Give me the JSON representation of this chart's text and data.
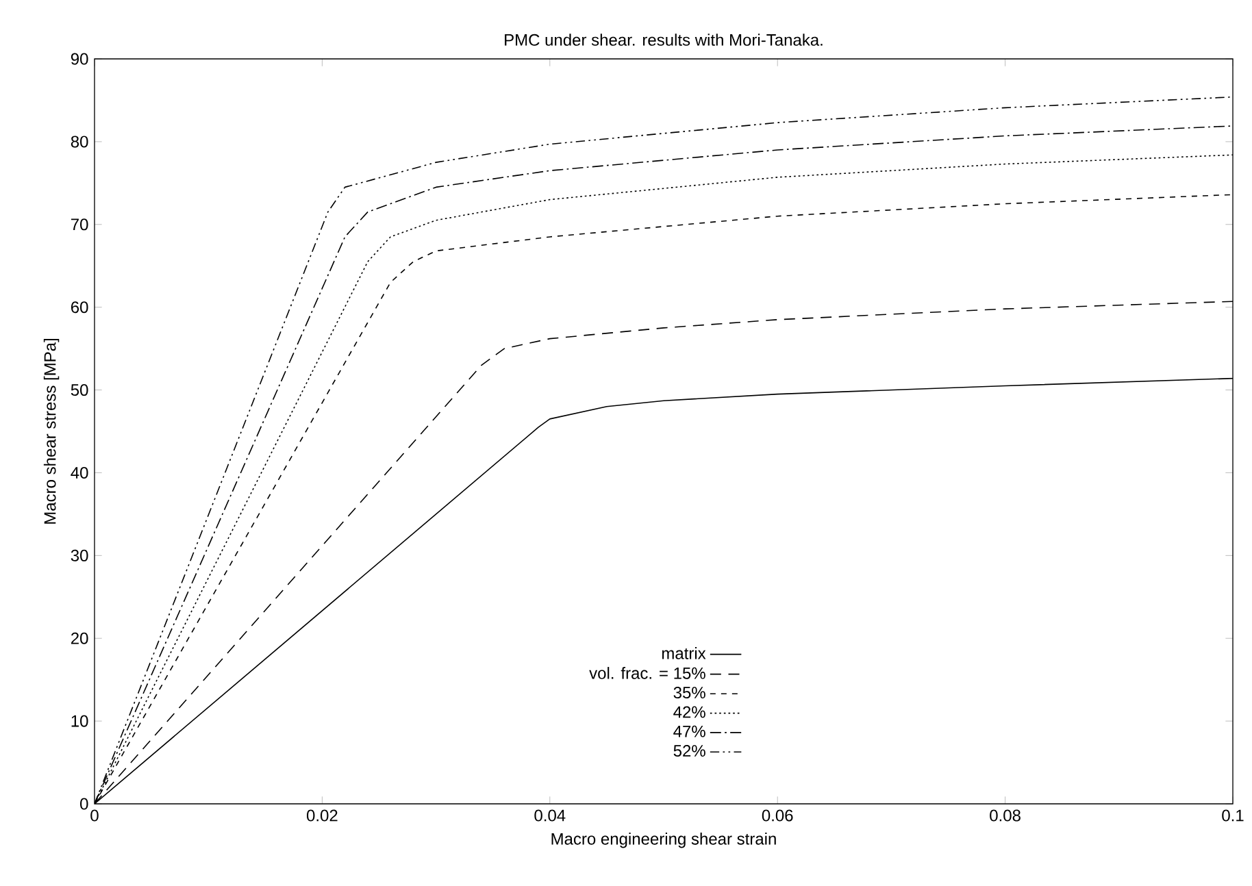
{
  "chart_data": {
    "type": "line",
    "title": "PMC under shear. results with Mori-Tanaka.",
    "xlabel": "Macro engineering shear strain",
    "ylabel": "Macro shear stress [MPa]",
    "xlim": [
      0,
      0.1
    ],
    "ylim": [
      0,
      90
    ],
    "xticks": [
      0,
      0.02,
      0.04,
      0.06,
      0.08,
      0.1
    ],
    "yticks": [
      0,
      10,
      20,
      30,
      40,
      50,
      60,
      70,
      80,
      90
    ],
    "grid": false,
    "legend": "bottom",
    "marker": "none",
    "series": [
      {
        "name": "matrix",
        "color": "#000000",
        "line_style": "solid",
        "x": [
          0,
          0.039,
          0.04,
          0.045,
          0.05,
          0.06,
          0.08,
          0.1
        ],
        "values": [
          0,
          45.5,
          46.5,
          48,
          48.7,
          49.5,
          50.5,
          51.4
        ]
      },
      {
        "name": "vol. frac. = 15%",
        "color": "#000000",
        "line_style": "dashed",
        "x": [
          0,
          0.034,
          0.036,
          0.04,
          0.05,
          0.06,
          0.08,
          0.1
        ],
        "values": [
          0,
          53,
          55,
          56.2,
          57.5,
          58.5,
          59.8,
          60.7
        ]
      },
      {
        "name": "35%",
        "color": "#000000",
        "line_style": "densely dashed",
        "x": [
          0,
          0.026,
          0.028,
          0.03,
          0.04,
          0.06,
          0.08,
          0.1
        ],
        "values": [
          0,
          63,
          65.5,
          66.8,
          68.5,
          71,
          72.5,
          73.6
        ]
      },
      {
        "name": "42%",
        "color": "#000000",
        "line_style": "dotted",
        "x": [
          0,
          0.024,
          0.026,
          0.03,
          0.04,
          0.06,
          0.08,
          0.1
        ],
        "values": [
          0,
          65.5,
          68.5,
          70.5,
          73,
          75.7,
          77.3,
          78.4
        ]
      },
      {
        "name": "47%",
        "color": "#000000",
        "line_style": "dashdot",
        "x": [
          0,
          0.022,
          0.024,
          0.03,
          0.04,
          0.06,
          0.08,
          0.1
        ],
        "values": [
          0,
          68.5,
          71.5,
          74.5,
          76.5,
          79,
          80.7,
          81.9
        ]
      },
      {
        "name": "52%",
        "color": "#000000",
        "line_style": "dashdotdot",
        "x": [
          0,
          0.0205,
          0.022,
          0.03,
          0.04,
          0.06,
          0.08,
          0.1
        ],
        "values": [
          0,
          71.5,
          74.5,
          77.5,
          79.7,
          82.3,
          84.1,
          85.4
        ]
      }
    ]
  }
}
